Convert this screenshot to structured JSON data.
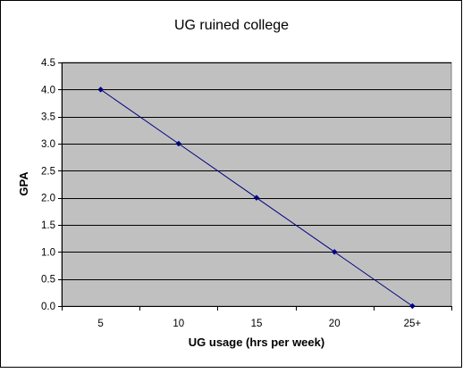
{
  "chart_data": {
    "type": "line",
    "title": "UG ruined college",
    "xlabel": "UG usage (hrs per week)",
    "ylabel": "GPA",
    "categories": [
      "5",
      "10",
      "15",
      "20",
      "25+"
    ],
    "series": [
      {
        "values": [
          4.0,
          3.0,
          2.0,
          1.0,
          0.0
        ]
      }
    ],
    "ylim": [
      0,
      4.5
    ],
    "yticks": [
      "0.0",
      "0.5",
      "1.0",
      "1.5",
      "2.0",
      "2.5",
      "3.0",
      "3.5",
      "4.0",
      "4.5"
    ],
    "grid": true,
    "legend": "none",
    "colors": {
      "plot_background": "#c0c0c0",
      "line": "#000080",
      "marker": "#000080",
      "gridline": "#000000",
      "frame": "#000000"
    }
  }
}
